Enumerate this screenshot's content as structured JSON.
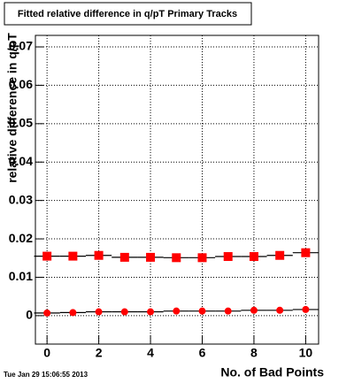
{
  "chart_data": {
    "type": "line",
    "title": "Fitted relative difference in q/pT Primary Tracks",
    "x_label": "No. of Bad Points",
    "y_label": "relative difference in q/pT",
    "timestamp": "Tue Jan 29 15:06:55 2013",
    "x": [
      0,
      1,
      2,
      3,
      4,
      5,
      6,
      7,
      8,
      9,
      10
    ],
    "series": [
      {
        "marker": "square",
        "color": "#ff0000",
        "values": [
          0.0155,
          0.0155,
          0.0157,
          0.0152,
          0.0152,
          0.0151,
          0.0151,
          0.0154,
          0.0154,
          0.0157,
          0.0164
        ]
      },
      {
        "marker": "circle",
        "color": "#ff0000",
        "values": [
          0.0007,
          0.0008,
          0.001,
          0.001,
          0.001,
          0.0012,
          0.0012,
          0.0012,
          0.0014,
          0.0014,
          0.0016
        ]
      }
    ],
    "xlim": [
      -0.45,
      10.5
    ],
    "ylim": [
      -0.0074,
      0.073
    ],
    "xticks": [
      0,
      2,
      4,
      6,
      8,
      10
    ],
    "yticks": [
      0,
      0.01,
      0.02,
      0.03,
      0.04,
      0.05,
      0.06,
      0.07
    ],
    "grid": true
  }
}
